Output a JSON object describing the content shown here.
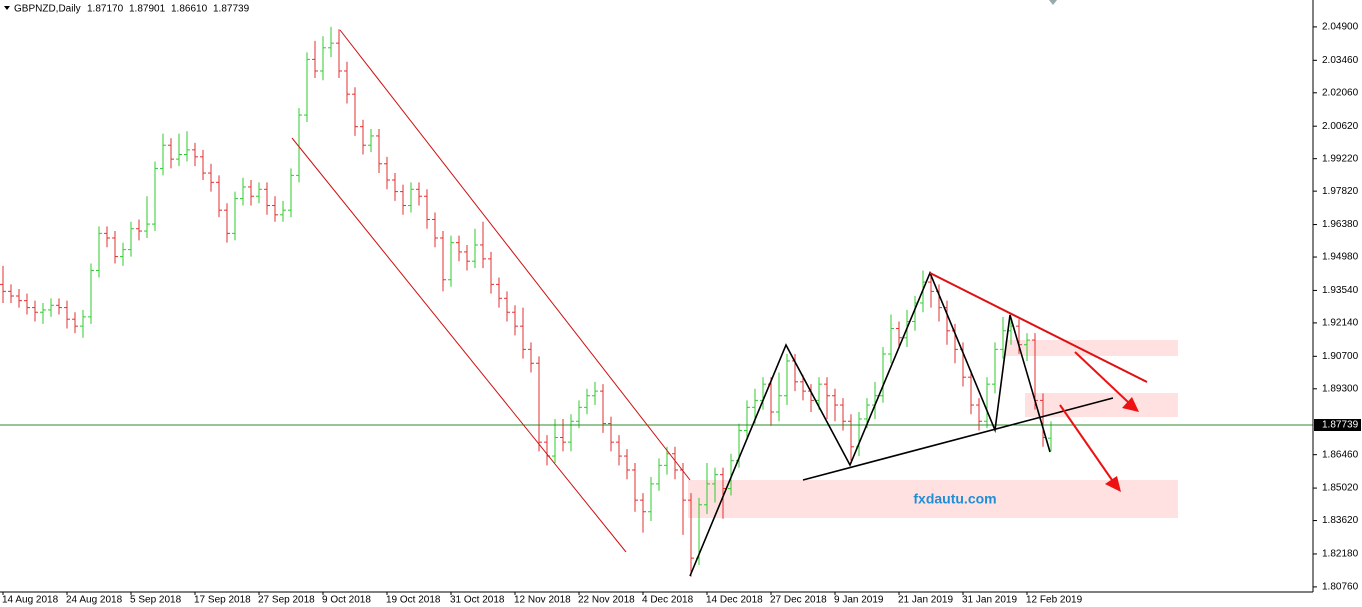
{
  "header": {
    "symbol": "GBPNZD,Daily",
    "ohlc": [
      "1.87170",
      "1.87901",
      "1.86610",
      "1.87739"
    ]
  },
  "watermark": "fxdautu.com",
  "chart_data": {
    "type": "ohlc",
    "up_color": "#2ecc2e",
    "down_color": "#e03030",
    "current_price": {
      "value": 1.87739,
      "label": "1.87739"
    },
    "current_price_color": "#2e8b2e",
    "ylim": [
      1.8054,
      2.0606
    ],
    "yticks": [
      {
        "value": 2.049,
        "label": "2.04900"
      },
      {
        "value": 2.0346,
        "label": "2.03460"
      },
      {
        "value": 2.0206,
        "label": "2.02060"
      },
      {
        "value": 2.0062,
        "label": "2.00620"
      },
      {
        "value": 1.9922,
        "label": "1.99220"
      },
      {
        "value": 1.9782,
        "label": "1.97820"
      },
      {
        "value": 1.9638,
        "label": "1.96380"
      },
      {
        "value": 1.9498,
        "label": "1.94980"
      },
      {
        "value": 1.9354,
        "label": "1.93540"
      },
      {
        "value": 1.9214,
        "label": "1.92140"
      },
      {
        "value": 1.907,
        "label": "1.90700"
      },
      {
        "value": 1.893,
        "label": "1.89300"
      },
      {
        "value": 1.8646,
        "label": "1.86460"
      },
      {
        "value": 1.8502,
        "label": "1.85020"
      },
      {
        "value": 1.8362,
        "label": "1.83620"
      },
      {
        "value": 1.8218,
        "label": "1.82180"
      },
      {
        "value": 1.8076,
        "label": "1.80760"
      }
    ],
    "categories": [
      "14 Aug 2018",
      null,
      null,
      null,
      null,
      null,
      null,
      null,
      "24 Aug 2018",
      null,
      null,
      null,
      null,
      null,
      null,
      null,
      "5 Sep 2018",
      null,
      null,
      null,
      null,
      null,
      null,
      null,
      "17 Sep 2018",
      null,
      null,
      null,
      null,
      null,
      null,
      null,
      "27 Sep 2018",
      null,
      null,
      null,
      null,
      null,
      null,
      null,
      "9 Oct 2018",
      null,
      null,
      null,
      null,
      null,
      null,
      null,
      "19 Oct 2018",
      null,
      null,
      null,
      null,
      null,
      null,
      null,
      "31 Oct 2018",
      null,
      null,
      null,
      null,
      null,
      null,
      null,
      "12 Nov 2018",
      null,
      null,
      null,
      null,
      null,
      null,
      null,
      "22 Nov 2018",
      null,
      null,
      null,
      null,
      null,
      null,
      null,
      "4 Dec 2018",
      null,
      null,
      null,
      null,
      null,
      null,
      null,
      "14 Dec 2018",
      null,
      null,
      null,
      null,
      null,
      null,
      null,
      "27 Dec 2018",
      null,
      null,
      null,
      null,
      null,
      null,
      null,
      "9 Jan 2019",
      null,
      null,
      null,
      null,
      null,
      null,
      null,
      "21 Jan 2019",
      null,
      null,
      null,
      null,
      null,
      null,
      null,
      "31 Jan 2019",
      null,
      null,
      null,
      null,
      null,
      null,
      null,
      "12 Feb 2019",
      null,
      null,
      null
    ],
    "open": [
      1.938,
      1.935,
      1.933,
      1.931,
      1.928,
      1.926,
      1.927,
      1.929,
      1.928,
      1.923,
      1.92,
      1.924,
      1.944,
      1.96,
      1.958,
      1.95,
      1.953,
      1.962,
      1.961,
      1.964,
      1.988,
      1.998,
      1.992,
      1.994,
      1.996,
      1.993,
      1.986,
      1.982,
      1.97,
      1.96,
      1.975,
      1.98,
      1.976,
      1.979,
      1.972,
      1.968,
      1.97,
      1.985,
      2.011,
      2.035,
      2.03,
      2.04,
      2.042,
      2.03,
      2.02,
      2.006,
      1.998,
      2.002,
      1.99,
      1.983,
      1.978,
      1.972,
      1.979,
      1.976,
      1.966,
      1.958,
      1.94,
      1.956,
      1.952,
      1.948,
      1.955,
      1.949,
      1.938,
      1.932,
      1.926,
      1.92,
      1.91,
      1.904,
      1.87,
      1.864,
      1.872,
      1.87,
      1.879,
      1.885,
      1.89,
      1.892,
      1.878,
      1.87,
      1.864,
      1.858,
      1.845,
      1.84,
      1.852,
      1.86,
      1.865,
      1.858,
      1.845,
      1.82,
      1.843,
      1.852,
      1.856,
      1.85,
      1.862,
      1.875,
      1.885,
      1.888,
      1.895,
      1.883,
      1.89,
      1.905,
      1.896,
      1.892,
      1.888,
      1.895,
      1.89,
      1.886,
      1.879,
      1.868,
      1.88,
      1.886,
      1.89,
      1.908,
      1.919,
      1.915,
      1.922,
      1.93,
      1.939,
      1.935,
      1.928,
      1.918,
      1.91,
      1.898,
      1.886,
      1.879,
      1.895,
      1.91,
      1.918,
      1.92,
      1.912,
      1.914,
      1.888,
      1.8717
    ],
    "high": [
      1.946,
      1.938,
      1.936,
      1.934,
      1.931,
      1.93,
      1.932,
      1.932,
      1.931,
      1.926,
      1.927,
      1.947,
      1.963,
      1.963,
      1.961,
      1.956,
      1.965,
      1.966,
      1.976,
      1.991,
      2.003,
      2.001,
      2.003,
      2.004,
      1.999,
      1.996,
      1.99,
      1.985,
      1.973,
      1.978,
      1.984,
      1.983,
      1.982,
      1.982,
      1.976,
      1.974,
      1.988,
      2.014,
      2.038,
      2.043,
      2.045,
      2.049,
      2.048,
      2.034,
      2.023,
      2.009,
      2.005,
      2.005,
      1.993,
      1.986,
      1.981,
      1.982,
      1.982,
      1.979,
      1.969,
      1.961,
      1.959,
      1.959,
      1.955,
      1.962,
      1.965,
      1.952,
      1.941,
      1.935,
      1.929,
      1.928,
      1.913,
      1.907,
      1.873,
      1.88,
      1.88,
      1.882,
      1.888,
      1.893,
      1.896,
      1.895,
      1.881,
      1.873,
      1.867,
      1.861,
      1.848,
      1.855,
      1.863,
      1.868,
      1.868,
      1.861,
      1.848,
      1.846,
      1.861,
      1.859,
      1.859,
      1.865,
      1.878,
      1.888,
      1.893,
      1.898,
      1.898,
      1.9,
      1.908,
      1.908,
      1.899,
      1.895,
      1.898,
      1.898,
      1.893,
      1.889,
      1.882,
      1.883,
      1.889,
      1.896,
      1.911,
      1.925,
      1.922,
      1.927,
      1.933,
      1.944,
      1.942,
      1.938,
      1.931,
      1.921,
      1.913,
      1.901,
      1.889,
      1.898,
      1.913,
      1.924,
      1.923,
      1.923,
      1.917,
      1.917,
      1.891,
      1.87901
    ],
    "low": [
      1.93,
      1.93,
      1.928,
      1.925,
      1.922,
      1.921,
      1.924,
      1.925,
      1.919,
      1.917,
      1.915,
      1.921,
      1.941,
      1.954,
      1.947,
      1.946,
      1.95,
      1.957,
      1.958,
      1.961,
      1.985,
      1.988,
      1.989,
      1.991,
      1.989,
      1.983,
      1.978,
      1.967,
      1.956,
      1.957,
      1.972,
      1.972,
      1.973,
      1.968,
      1.965,
      1.965,
      1.967,
      1.982,
      2.008,
      2.027,
      2.026,
      2.036,
      2.027,
      2.016,
      2.002,
      1.994,
      1.995,
      1.986,
      1.979,
      1.974,
      1.968,
      1.969,
      1.972,
      1.962,
      1.954,
      1.935,
      1.937,
      1.948,
      1.944,
      1.945,
      1.945,
      1.934,
      1.928,
      1.922,
      1.916,
      1.906,
      1.9,
      1.866,
      1.86,
      1.861,
      1.866,
      1.866,
      1.876,
      1.882,
      1.886,
      1.874,
      1.866,
      1.86,
      1.854,
      1.84,
      1.831,
      1.836,
      1.849,
      1.856,
      1.854,
      1.83,
      1.812,
      1.817,
      1.839,
      1.844,
      1.837,
      1.847,
      1.859,
      1.871,
      1.878,
      1.884,
      1.877,
      1.879,
      1.886,
      1.892,
      1.888,
      1.883,
      1.884,
      1.88,
      1.879,
      1.875,
      1.862,
      1.864,
      1.876,
      1.88,
      1.887,
      1.904,
      1.911,
      1.911,
      1.918,
      1.926,
      1.928,
      1.922,
      1.912,
      1.904,
      1.894,
      1.882,
      1.875,
      1.876,
      1.891,
      1.906,
      1.912,
      1.908,
      1.905,
      1.884,
      1.868,
      1.8661
    ],
    "close": [
      1.935,
      1.933,
      1.931,
      1.928,
      1.926,
      1.927,
      1.929,
      1.928,
      1.923,
      1.92,
      1.924,
      1.944,
      1.96,
      1.958,
      1.95,
      1.953,
      1.962,
      1.961,
      1.964,
      1.988,
      1.998,
      1.992,
      1.994,
      1.996,
      1.993,
      1.986,
      1.982,
      1.97,
      1.96,
      1.975,
      1.98,
      1.976,
      1.979,
      1.972,
      1.968,
      1.97,
      1.985,
      2.011,
      2.035,
      2.03,
      2.04,
      2.042,
      2.03,
      2.02,
      2.006,
      1.998,
      2.002,
      1.99,
      1.983,
      1.978,
      1.972,
      1.979,
      1.976,
      1.966,
      1.958,
      1.94,
      1.956,
      1.952,
      1.948,
      1.955,
      1.949,
      1.938,
      1.932,
      1.926,
      1.92,
      1.91,
      1.904,
      1.87,
      1.864,
      1.872,
      1.87,
      1.879,
      1.885,
      1.89,
      1.892,
      1.878,
      1.87,
      1.864,
      1.858,
      1.845,
      1.84,
      1.852,
      1.86,
      1.865,
      1.858,
      1.845,
      1.82,
      1.843,
      1.852,
      1.856,
      1.85,
      1.862,
      1.875,
      1.885,
      1.888,
      1.895,
      1.883,
      1.89,
      1.905,
      1.896,
      1.892,
      1.888,
      1.895,
      1.89,
      1.886,
      1.879,
      1.868,
      1.88,
      1.886,
      1.89,
      1.908,
      1.919,
      1.915,
      1.922,
      1.93,
      1.939,
      1.935,
      1.928,
      1.918,
      1.91,
      1.898,
      1.886,
      1.879,
      1.895,
      1.91,
      1.918,
      1.92,
      1.912,
      1.914,
      1.888,
      1.872,
      1.87739
    ]
  }
}
